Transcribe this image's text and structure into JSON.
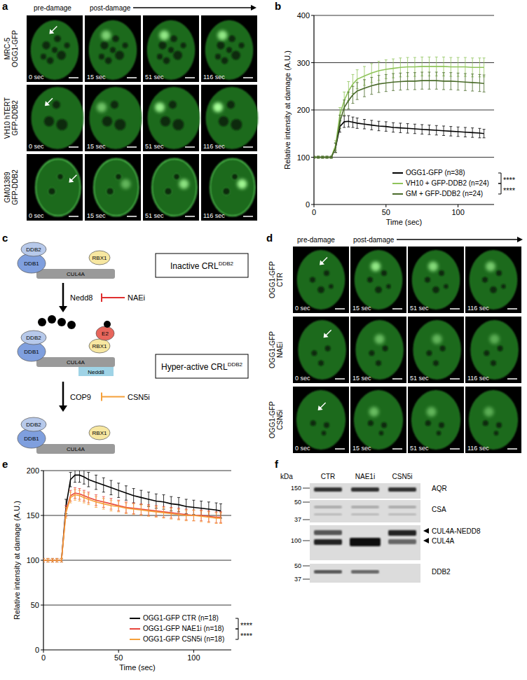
{
  "panel_labels": [
    "a",
    "b",
    "c",
    "d",
    "e",
    "f"
  ],
  "panel_a": {
    "header": {
      "pre": "pre-damage",
      "post": "post-damage"
    },
    "rows": [
      [
        "MRC-5",
        "OGG1-GFP"
      ],
      [
        "VH10 hTERT",
        "GFP-DDB2"
      ],
      [
        "GM01389",
        "GFP-DDB2"
      ]
    ],
    "times": [
      "0 sec",
      "15 sec",
      "51 sec",
      "116 sec"
    ]
  },
  "chart_data": [
    {
      "type": "line",
      "y_label": "Relative intensity at damage  (A.U.)",
      "x_label": "Time (sec)",
      "x": [
        0,
        3,
        6,
        9,
        12,
        15,
        18,
        21,
        24,
        27,
        30,
        35,
        40,
        45,
        50,
        55,
        60,
        65,
        70,
        75,
        80,
        85,
        90,
        95,
        100,
        105,
        110,
        115,
        118
      ],
      "xlim": [
        0,
        125
      ],
      "xticks": [
        0,
        50,
        100
      ],
      "ylim": [
        0,
        400
      ],
      "yticks": [
        0,
        100,
        200,
        300,
        400
      ],
      "grid": true,
      "legend": "lower right",
      "series": [
        {
          "name": "OGG1-GFP (n=38)",
          "color": "#000000",
          "values": [
            100,
            100,
            100,
            100,
            100,
            120,
            165,
            175,
            176,
            174,
            172,
            170,
            168,
            166,
            165,
            163,
            162,
            161,
            160,
            159,
            158,
            157,
            156,
            155,
            154,
            153,
            152,
            151,
            150
          ],
          "errors": [
            2,
            2,
            2,
            2,
            2,
            10,
            12,
            12,
            12,
            11,
            11,
            10,
            10,
            10,
            10,
            10,
            10,
            10,
            10,
            10,
            10,
            10,
            10,
            10,
            10,
            10,
            10,
            10,
            9
          ]
        },
        {
          "name": "VH10 + GFP-DDB2 (n=24)",
          "color": "#8fc45a",
          "values": [
            100,
            100,
            100,
            100,
            100,
            125,
            190,
            220,
            240,
            255,
            265,
            272,
            278,
            283,
            286,
            288,
            290,
            291,
            291,
            292,
            292,
            292,
            292,
            291,
            291,
            291,
            290,
            290,
            290
          ],
          "errors": [
            2,
            2,
            2,
            2,
            2,
            10,
            15,
            18,
            20,
            20,
            20,
            20,
            20,
            20,
            20,
            20,
            20,
            20,
            20,
            20,
            20,
            20,
            20,
            20,
            20,
            20,
            20,
            20,
            20
          ]
        },
        {
          "name": "GM + GFP-DDB2 (n=24)",
          "color": "#4a6b2a",
          "values": [
            100,
            100,
            100,
            100,
            100,
            120,
            175,
            205,
            220,
            232,
            240,
            246,
            251,
            255,
            257,
            259,
            260,
            261,
            261,
            262,
            262,
            262,
            261,
            261,
            260,
            259,
            258,
            257,
            256
          ],
          "errors": [
            2,
            2,
            2,
            2,
            2,
            10,
            14,
            16,
            18,
            18,
            18,
            18,
            18,
            18,
            18,
            18,
            18,
            18,
            18,
            18,
            18,
            18,
            18,
            18,
            18,
            18,
            18,
            18,
            18
          ]
        }
      ],
      "annotations": [
        "****",
        "****"
      ]
    },
    {
      "type": "line",
      "y_label": "Relative intensity at damage  (A.U.)",
      "x_label": "Time (sec)",
      "x": [
        0,
        3,
        6,
        9,
        12,
        15,
        18,
        21,
        24,
        27,
        30,
        35,
        40,
        45,
        50,
        55,
        60,
        65,
        70,
        75,
        80,
        85,
        90,
        95,
        100,
        105,
        110,
        115,
        118
      ],
      "xlim": [
        0,
        125
      ],
      "xticks": [
        0,
        50,
        100
      ],
      "ylim": [
        0,
        200
      ],
      "yticks": [
        0,
        50,
        100,
        150,
        200
      ],
      "grid": true,
      "legend": "lower right",
      "series": [
        {
          "name": "OGG1-GFP CTR (n=18)",
          "color": "#000000",
          "values": [
            100,
            100,
            100,
            100,
            100,
            160,
            190,
            195,
            195,
            193,
            190,
            187,
            184,
            181,
            178,
            175,
            172,
            170,
            168,
            166,
            165,
            163,
            162,
            160,
            159,
            158,
            157,
            156,
            155
          ],
          "errors": [
            2,
            2,
            2,
            2,
            2,
            8,
            8,
            8,
            8,
            8,
            8,
            8,
            8,
            8,
            8,
            8,
            8,
            8,
            8,
            8,
            8,
            8,
            8,
            8,
            8,
            8,
            8,
            8,
            8
          ]
        },
        {
          "name": "OGG1-GFP NAE1i (n=18)",
          "color": "#e8453c",
          "values": [
            100,
            100,
            100,
            100,
            100,
            155,
            172,
            175,
            174,
            172,
            170,
            167,
            165,
            163,
            161,
            159,
            158,
            157,
            156,
            155,
            154,
            153,
            152,
            151,
            150,
            150,
            149,
            148,
            148
          ],
          "errors": [
            2,
            2,
            2,
            2,
            2,
            6,
            6,
            6,
            6,
            6,
            6,
            6,
            6,
            6,
            6,
            6,
            6,
            6,
            6,
            6,
            6,
            6,
            6,
            6,
            6,
            6,
            6,
            6,
            6
          ]
        },
        {
          "name": "OGG1-GFP CSN5i (n=18)",
          "color": "#f5a03a",
          "values": [
            100,
            100,
            100,
            100,
            100,
            153,
            170,
            173,
            172,
            170,
            168,
            165,
            163,
            161,
            160,
            158,
            157,
            156,
            155,
            154,
            153,
            152,
            151,
            150,
            150,
            149,
            148,
            147,
            147
          ],
          "errors": [
            2,
            2,
            2,
            2,
            2,
            6,
            6,
            6,
            6,
            6,
            6,
            6,
            6,
            6,
            6,
            6,
            6,
            6,
            6,
            6,
            6,
            6,
            6,
            6,
            6,
            6,
            6,
            6,
            6
          ]
        }
      ],
      "annotations": [
        "****",
        "****"
      ]
    }
  ],
  "panel_c": {
    "complex": {
      "ddb1": "DDB1",
      "ddb2": "DDB2",
      "cul4a": "CUL4A",
      "rbx1": "RBX1",
      "e2": "E2",
      "nedd8": "Nedd8"
    },
    "step1": {
      "modifier": "Nedd8",
      "inhibitor": "NAEi"
    },
    "step2": {
      "modifier": "COP9",
      "inhibitor": "CSN5i"
    },
    "states": [
      {
        "text": "Inactive CRL",
        "sup": "DDB2"
      },
      {
        "text": "Hyper-active CRL",
        "sup": "DDB2"
      }
    ]
  },
  "panel_d": {
    "header": {
      "pre": "pre-damage",
      "post": "post-damage"
    },
    "rows": [
      [
        "OGG1-GFP",
        "CTR"
      ],
      [
        "OGG1-GFP",
        "NAEi"
      ],
      [
        "OGG1-GFP",
        "CSN5i"
      ]
    ],
    "times": [
      "0 sec",
      "15 sec",
      "51 sec",
      "116 sec"
    ]
  },
  "panel_f": {
    "kda": "kDa",
    "lanes": [
      "CTR",
      "NAE1i",
      "CSN5i"
    ],
    "markers": [
      150,
      50,
      37,
      100,
      50,
      37
    ],
    "proteins": [
      "AQR",
      "CSA",
      "CUL4A-NEDD8",
      "CUL4A",
      "DDB2"
    ]
  }
}
